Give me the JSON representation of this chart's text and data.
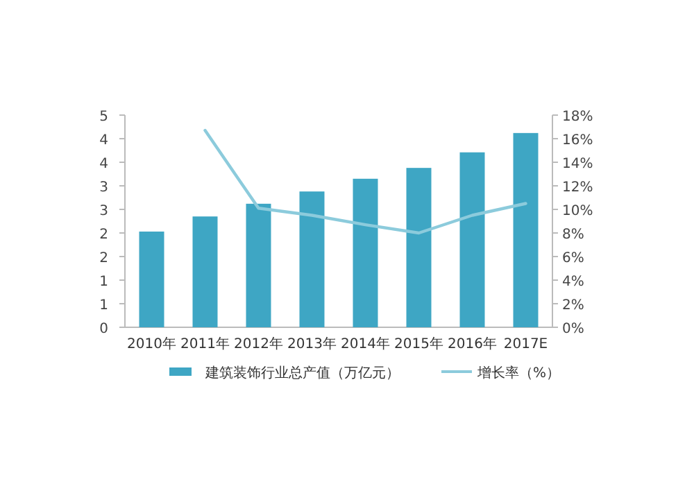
{
  "chart_data": {
    "type": "bar",
    "categories": [
      "2010年",
      "2011年",
      "2012年",
      "2013年",
      "2014年",
      "2015年",
      "2016年",
      "2017E"
    ],
    "series": [
      {
        "name": "建筑装饰行业总产值（万亿元）",
        "color": "#3ea6c4",
        "values": [
          2.03,
          2.35,
          2.62,
          2.88,
          3.15,
          3.38,
          3.71,
          4.12
        ]
      },
      {
        "name": "增长率（%）",
        "type": "line",
        "axis": "y2",
        "color": "#8ccbdc",
        "values": [
          null,
          16.7,
          10.1,
          9.5,
          8.7,
          8.0,
          9.5,
          10.5
        ]
      }
    ],
    "ylim": [
      0,
      4.5
    ],
    "yticks": [
      0,
      {
        "value": 0.5,
        "label": "1"
      },
      1,
      {
        "value": 1.5,
        "label": "2"
      },
      2,
      {
        "value": 2.5,
        "label": "3"
      },
      3,
      {
        "value": 3.5,
        "label": "4"
      },
      4,
      {
        "value": 4.5,
        "label": "5"
      }
    ],
    "y2lim": [
      0,
      18
    ],
    "y2ticks": [
      {
        "value": 0,
        "label": "0%"
      },
      {
        "value": 2,
        "label": "2%"
      },
      {
        "value": 4,
        "label": "4%"
      },
      {
        "value": 6,
        "label": "6%"
      },
      {
        "value": 8,
        "label": "8%"
      },
      {
        "value": 10,
        "label": "10%"
      },
      {
        "value": 12,
        "label": "12%"
      },
      {
        "value": 14,
        "label": "14%"
      },
      {
        "value": 16,
        "label": "16%"
      },
      {
        "value": 18,
        "label": "18%"
      }
    ],
    "legend": "bottom",
    "grid": false
  }
}
